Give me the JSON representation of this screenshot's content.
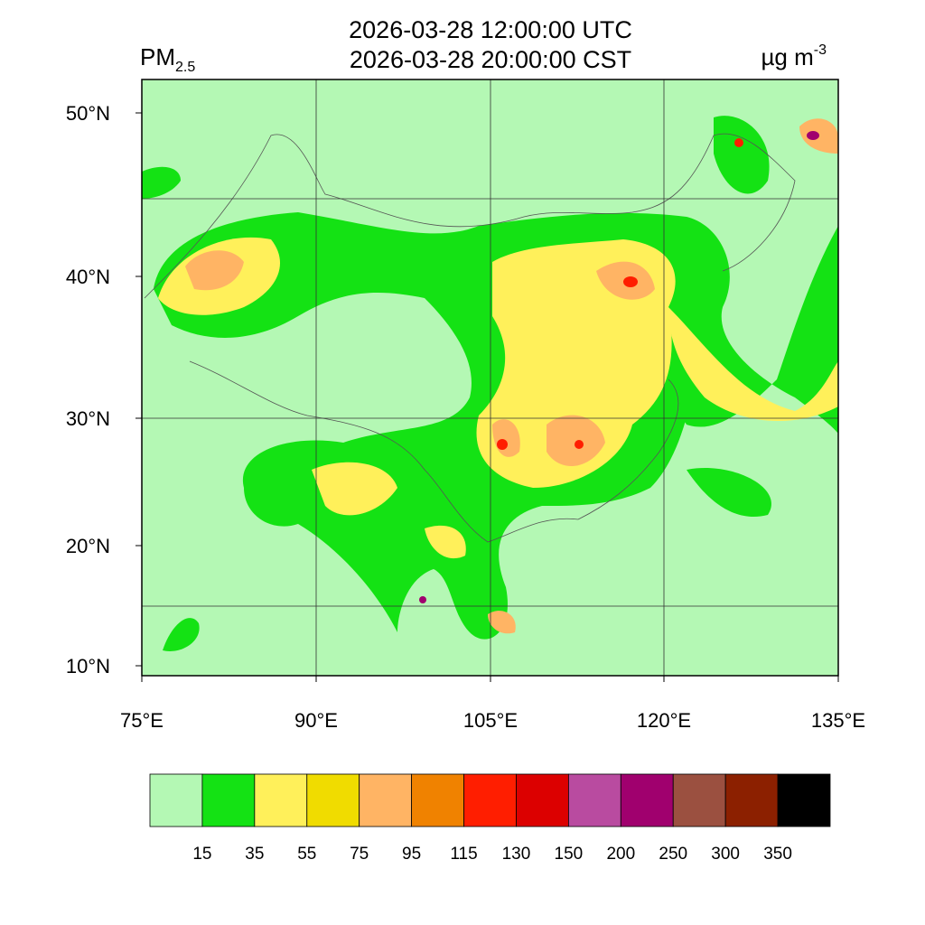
{
  "header": {
    "title_utc": "2026-03-28 12:00:00 UTC",
    "title_cst": "2026-03-28 20:00:00 CST",
    "variable": "PM",
    "variable_sub": "2.5",
    "unit": "µg m",
    "unit_sup": "-3"
  },
  "axes": {
    "lat_labels": [
      "50°N",
      "40°N",
      "30°N",
      "20°N",
      "10°N"
    ],
    "lon_labels": [
      "75°E",
      "90°E",
      "105°E",
      "120°E",
      "135°E"
    ]
  },
  "colorbar": {
    "colors": [
      "#b4f8b4",
      "#14e214",
      "#fff05a",
      "#f0dc00",
      "#ffb464",
      "#f08200",
      "#ff1e00",
      "#dc0000",
      "#b94ba0",
      "#a0006e",
      "#9b5040",
      "#8c2000",
      "#000000"
    ],
    "labels": [
      15,
      35,
      55,
      75,
      95,
      115,
      130,
      150,
      200,
      250,
      300,
      350
    ]
  }
}
